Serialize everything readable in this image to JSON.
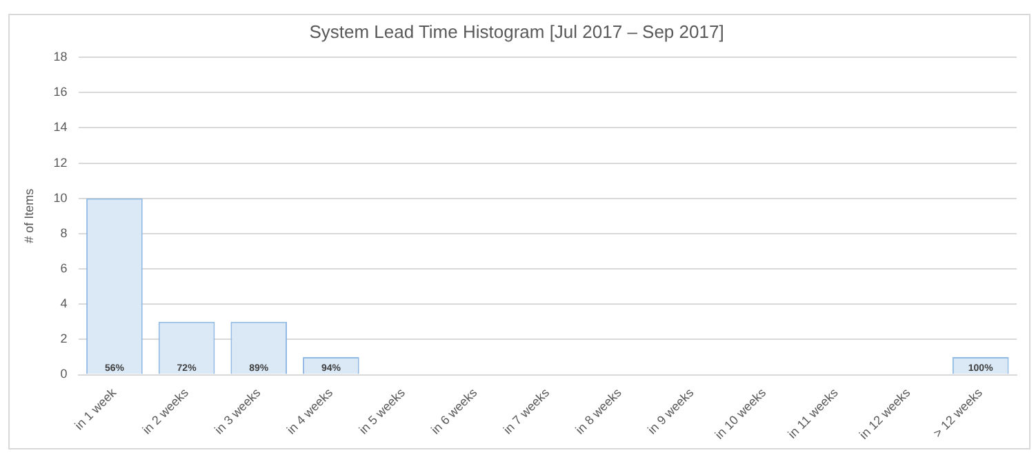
{
  "chart_data": {
    "type": "bar",
    "title": "System Lead Time Histogram [Jul 2017 – Sep 2017]",
    "ylabel": "# of Items",
    "categories": [
      "in 1 week",
      "in 2 weeks",
      "in 3 weeks",
      "in 4 weeks",
      "in 5 weeks",
      "in 6 weeks",
      "in 7 weeks",
      "in 8 weeks",
      "in 9 weeks",
      "in 10 weeks",
      "in 11 weeks",
      "in 12 weeks",
      "> 12 weeks"
    ],
    "values": [
      10,
      3,
      3,
      1,
      0,
      0,
      0,
      0,
      0,
      0,
      0,
      0,
      1
    ],
    "annotations": [
      {
        "text": "56%",
        "x": "in 1 week",
        "y": 0
      },
      {
        "text": "72%",
        "x": "in 2 weeks",
        "y": 0
      },
      {
        "text": "89%",
        "x": "in 3 weeks",
        "y": 0
      },
      {
        "text": "94%",
        "x": "in 4 weeks",
        "y": 0
      },
      {
        "text": "100%",
        "x": "> 12 weeks",
        "y": 0
      }
    ],
    "color": "#dbe9f7",
    "ylim": [
      0,
      18
    ],
    "yticks": [
      0,
      2,
      4,
      6,
      8,
      10,
      12,
      14,
      16,
      18
    ],
    "grid": "y",
    "legend": false
  }
}
